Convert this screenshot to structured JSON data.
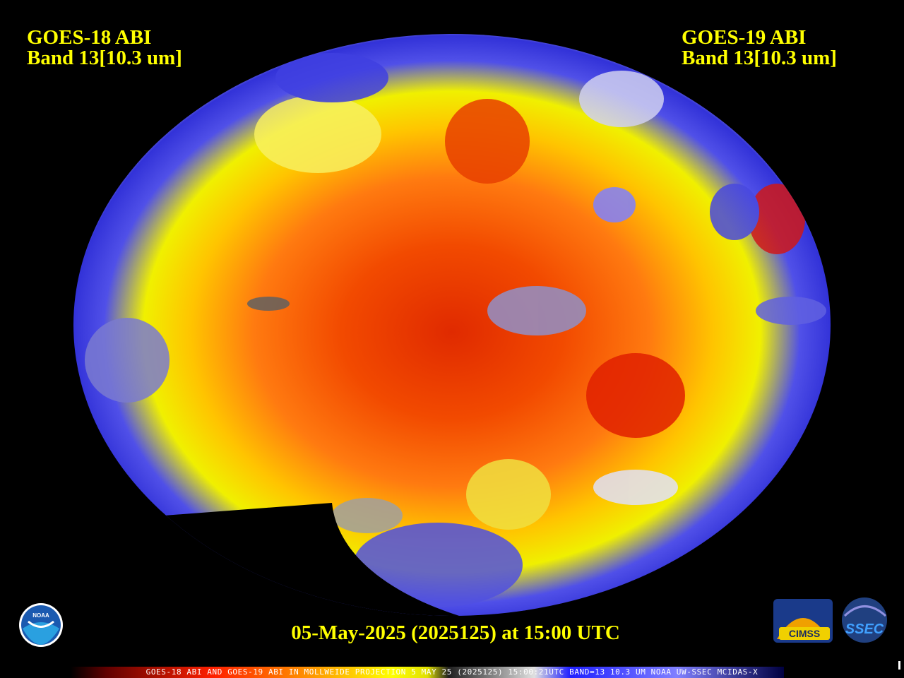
{
  "left_label": {
    "satellite": "GOES-18 ABI",
    "band": "Band 13[10.3 um]"
  },
  "right_label": {
    "satellite": "GOES-19 ABI",
    "band": "Band 13[10.3 um]"
  },
  "timestamp": "05-May-2025 (2025125) at 15:00 UTC",
  "caption": "GOES-18 ABI AND GOES-19 ABI IN MOLLWEIDE PROJECTION 5 MAY 25 (2025125) 15:00:21UTC BAND=13 10.3 UM NOAA UW-SSEC MCIDAS-X",
  "logos": {
    "noaa": "NOAA",
    "cimss": "CIMSS",
    "ssec": "SSEC"
  }
}
